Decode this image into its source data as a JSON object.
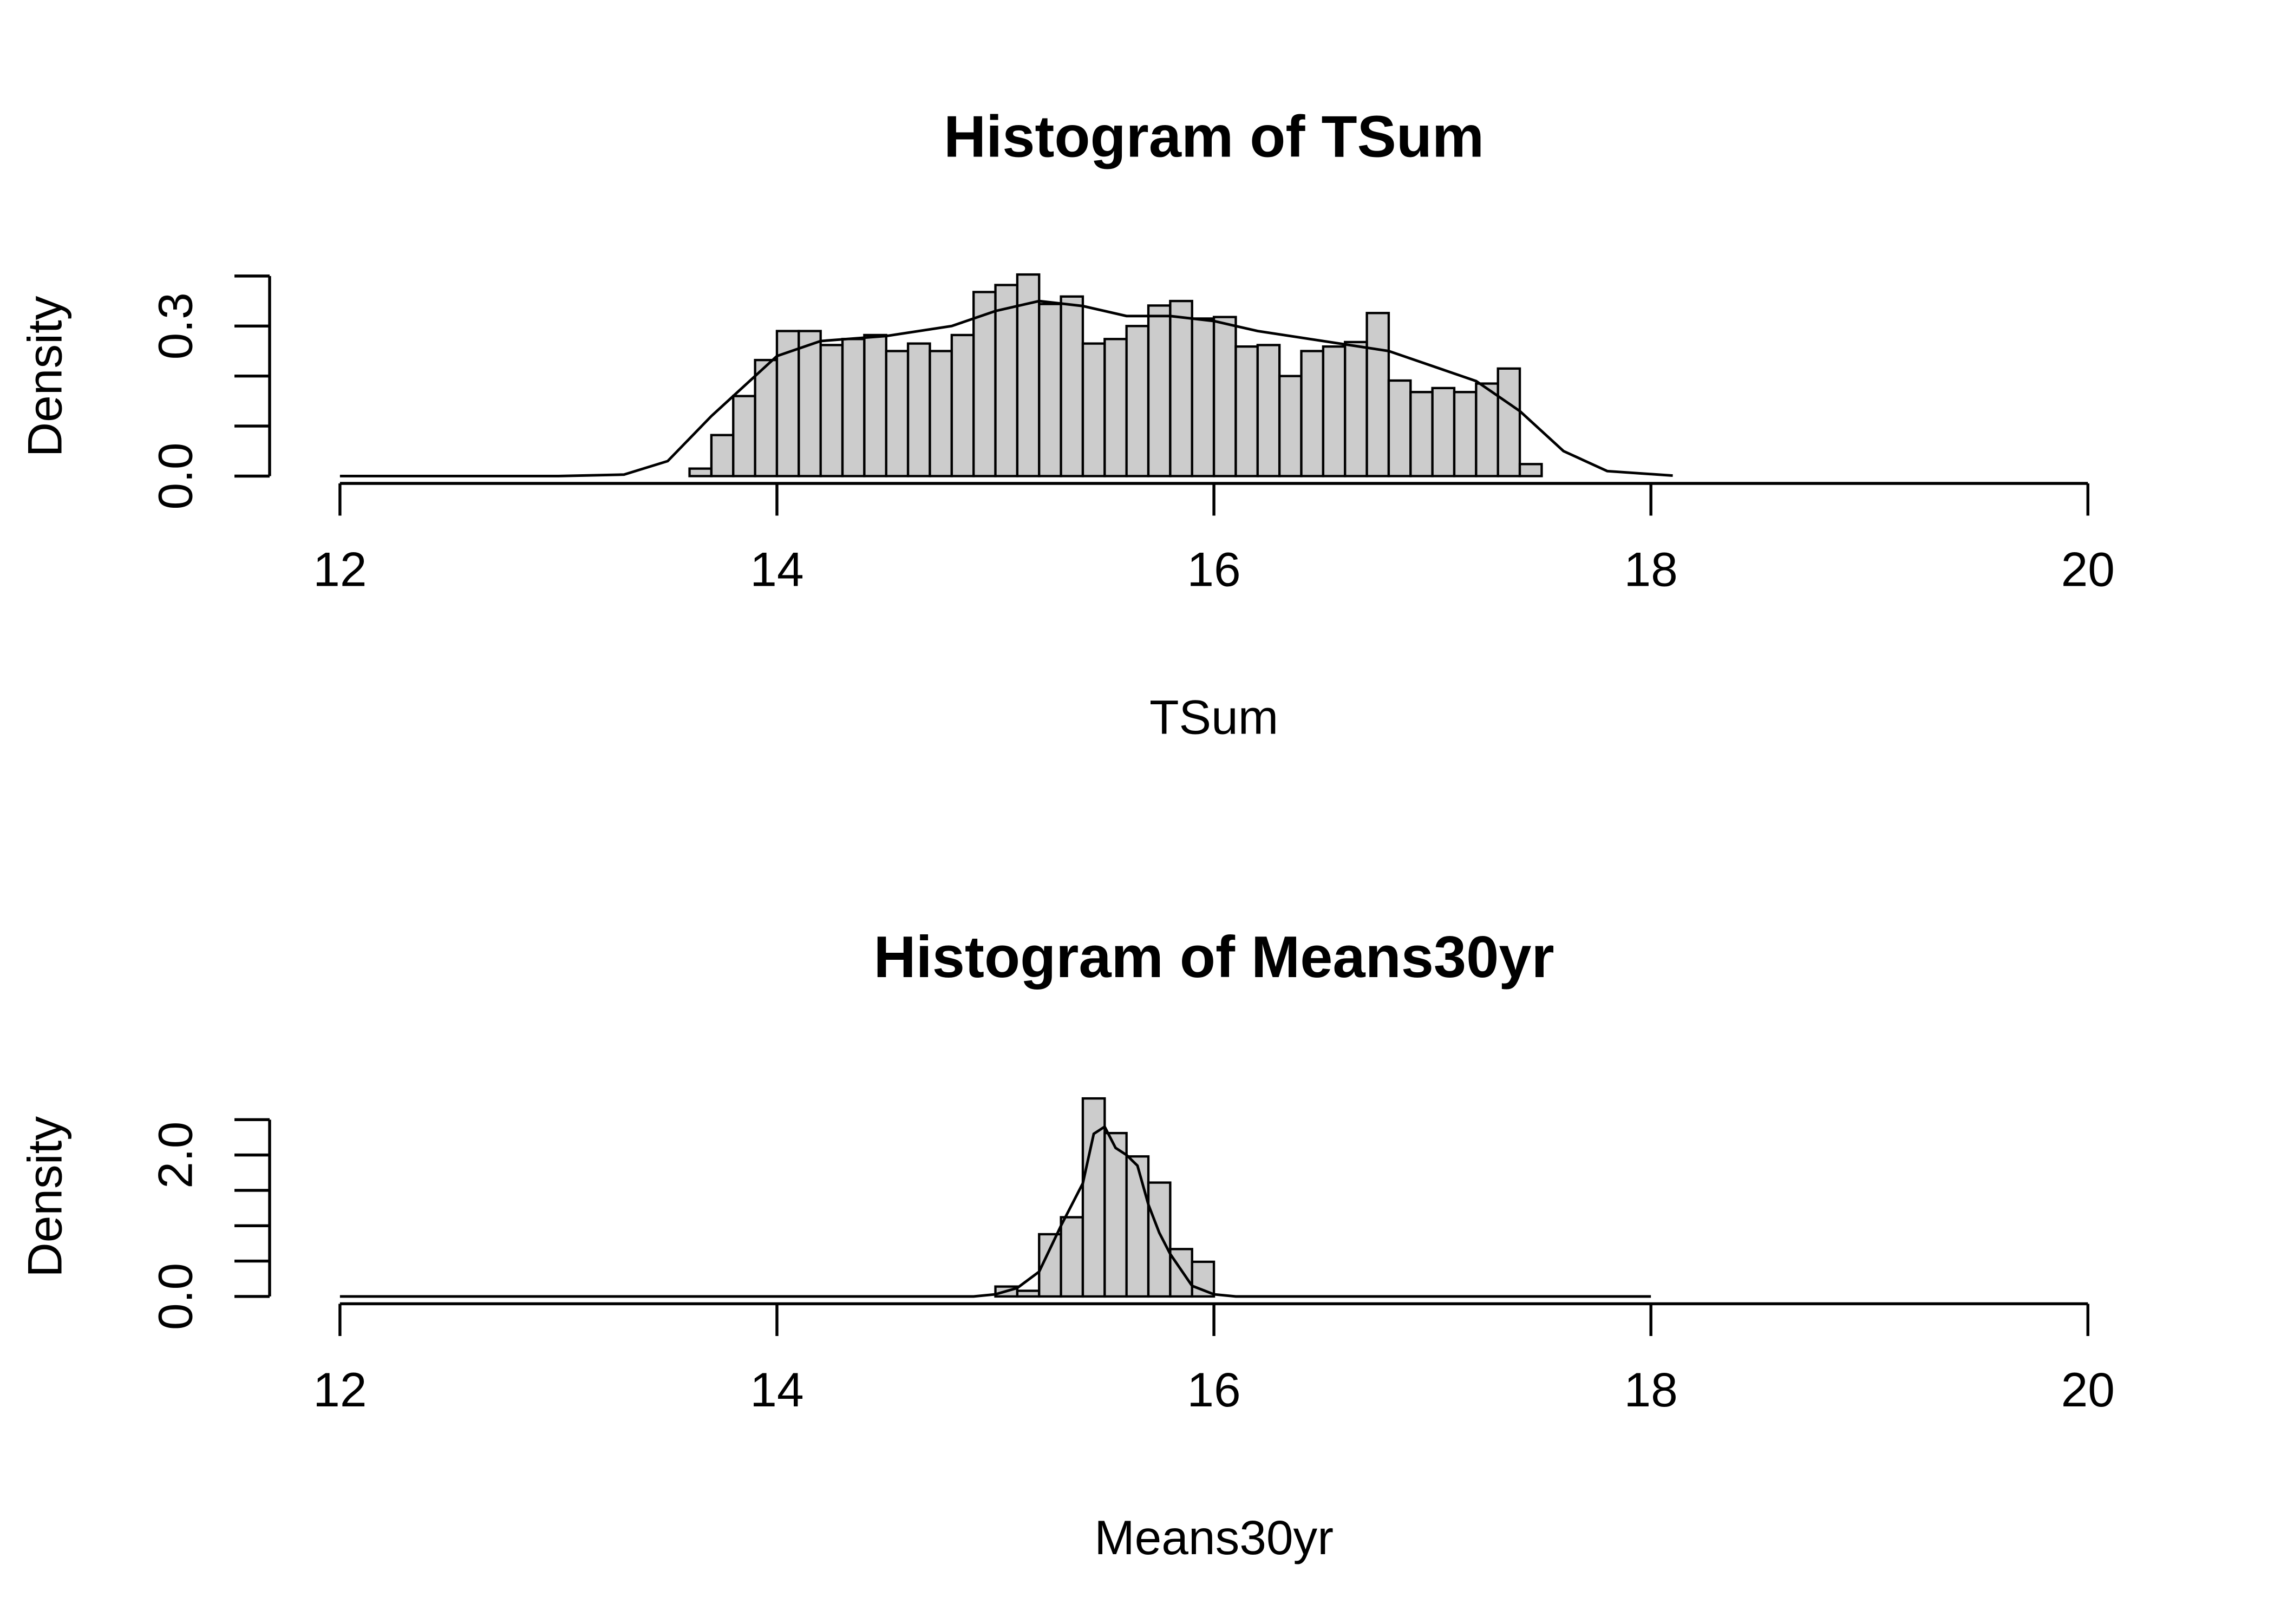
{
  "chart_data": [
    {
      "type": "histogram",
      "title": "Histogram of TSum",
      "xlabel": "TSum",
      "ylabel": "Density",
      "bins": [
        13.6,
        13.7,
        13.8,
        13.9,
        14.0,
        14.1,
        14.2,
        14.3,
        14.4,
        14.5,
        14.6,
        14.7,
        14.8,
        14.9,
        15.0,
        15.1,
        15.2,
        15.3,
        15.4,
        15.5,
        15.6,
        15.7,
        15.8,
        15.9,
        16.0,
        16.1,
        16.2,
        16.3,
        16.4,
        16.5,
        16.6,
        16.7,
        16.8,
        16.9,
        17.0,
        17.1,
        17.2,
        17.3,
        17.4,
        17.5
      ],
      "values": [
        0.015,
        0.082,
        0.16,
        0.232,
        0.29,
        0.29,
        0.262,
        0.274,
        0.282,
        0.25,
        0.265,
        0.25,
        0.282,
        0.368,
        0.382,
        0.403,
        0.344,
        0.359,
        0.265,
        0.274,
        0.3,
        0.341,
        0.35,
        0.315,
        0.318,
        0.259,
        0.262,
        0.2,
        0.25,
        0.259,
        0.268,
        0.326,
        0.191,
        0.168,
        0.176,
        0.168,
        0.185,
        0.215,
        0.024
      ],
      "color": "#cccccc",
      "density": {
        "color": "#000000",
        "x": [
          12,
          13,
          13.3,
          13.5,
          13.7,
          13.9,
          14.0,
          14.2,
          14.5,
          14.8,
          15.0,
          15.2,
          15.4,
          15.6,
          15.8,
          16.0,
          16.2,
          16.5,
          16.8,
          17.0,
          17.2,
          17.4,
          17.6,
          17.8,
          18.1
        ],
        "y": [
          0,
          0,
          0.003,
          0.03,
          0.12,
          0.2,
          0.24,
          0.27,
          0.28,
          0.3,
          0.33,
          0.35,
          0.34,
          0.32,
          0.32,
          0.31,
          0.29,
          0.27,
          0.25,
          0.22,
          0.19,
          0.13,
          0.05,
          0.01,
          0.001
        ]
      },
      "xlim": [
        12,
        20
      ],
      "xticks": [
        12,
        14,
        16,
        18,
        20
      ],
      "ylim": [
        0,
        0.41
      ],
      "yticks": [
        {
          "value": 0,
          "label": "0.0"
        },
        {
          "value": 0.1,
          "label": null
        },
        {
          "value": 0.2,
          "label": null
        },
        {
          "value": 0.3,
          "label": "0.3"
        },
        {
          "value": 0.4,
          "label": null
        }
      ]
    },
    {
      "type": "histogram",
      "title": "Histogram of Means30yr",
      "xlabel": "Means30yr",
      "ylabel": "Density",
      "bins": [
        15.0,
        15.1,
        15.2,
        15.3,
        15.4,
        15.5,
        15.6,
        15.7,
        15.8,
        15.9,
        16.0
      ],
      "values": [
        0.14,
        0.08,
        0.88,
        1.12,
        2.8,
        2.31,
        1.98,
        1.61,
        0.67,
        0.49
      ],
      "color": "#cccccc",
      "density": {
        "color": "#000000",
        "x": [
          12,
          14.9,
          15.0,
          15.1,
          15.2,
          15.3,
          15.4,
          15.45,
          15.5,
          15.55,
          15.6,
          15.65,
          15.7,
          15.75,
          15.8,
          15.9,
          16.0,
          16.1,
          18
        ],
        "y": [
          0,
          0,
          0.03,
          0.12,
          0.35,
          1.0,
          1.6,
          2.3,
          2.4,
          2.1,
          2.0,
          1.85,
          1.3,
          0.9,
          0.6,
          0.15,
          0.03,
          0,
          0
        ]
      },
      "xlim": [
        12,
        20
      ],
      "xticks": [
        12,
        14,
        16,
        18,
        20
      ],
      "ylim": [
        0,
        2.9
      ],
      "yticks": [
        {
          "value": 0,
          "label": "0.0"
        },
        {
          "value": 0.5,
          "label": null
        },
        {
          "value": 1.0,
          "label": null
        },
        {
          "value": 1.5,
          "label": null
        },
        {
          "value": 2.0,
          "label": "2.0"
        },
        {
          "value": 2.5,
          "label": null
        }
      ]
    }
  ]
}
